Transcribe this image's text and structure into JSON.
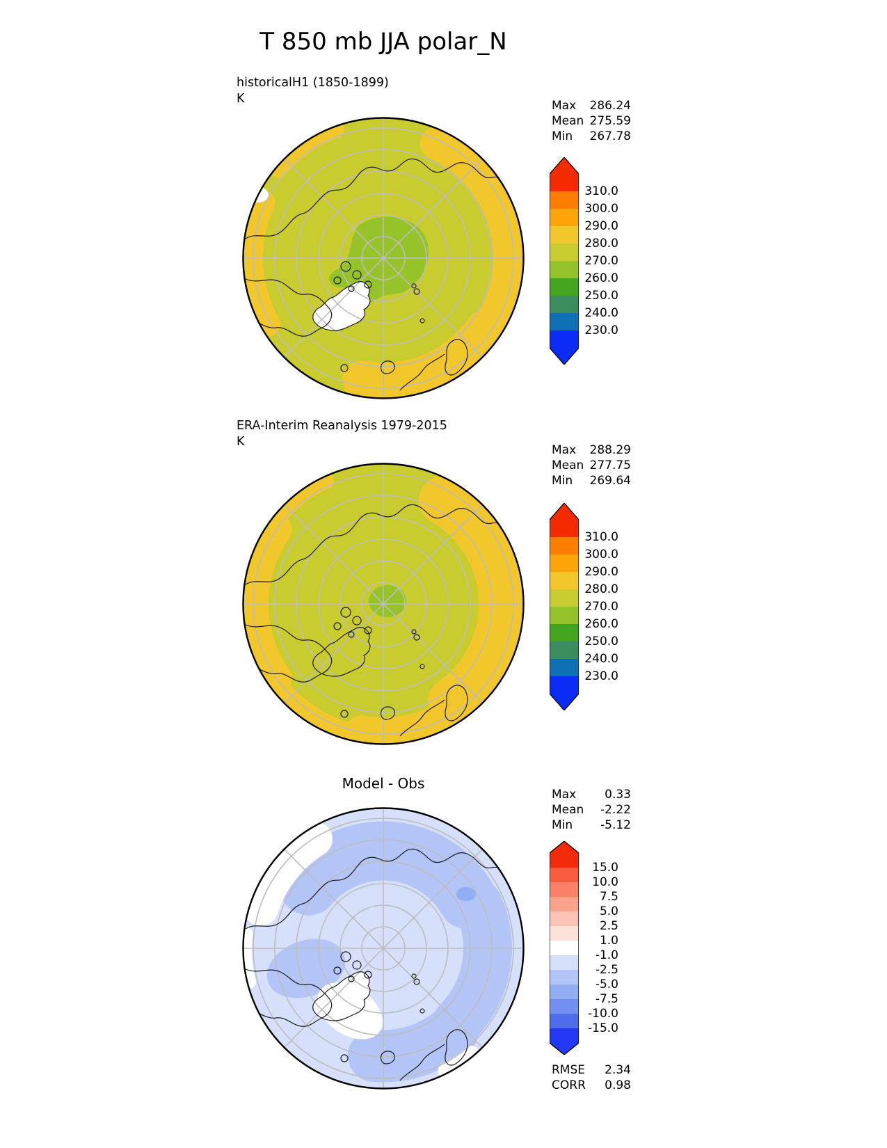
{
  "title": "T 850 mb JJA polar_N",
  "stats_labels": {
    "max": "Max",
    "mean": "Mean",
    "min": "Min",
    "rmse": "RMSE",
    "corr": "CORR"
  },
  "panels": [
    {
      "label": "historicalH1 (1850-1899)",
      "units": "K",
      "stats": {
        "max": "286.24",
        "mean": "275.59",
        "min": "267.78"
      },
      "colorbar": {
        "tick_labels": [
          "310.0",
          "300.0",
          "290.0",
          "280.0",
          "270.0",
          "260.0",
          "250.0",
          "240.0",
          "230.0"
        ],
        "colors": [
          "#f42b01",
          "#fb7e00",
          "#fca408",
          "#f2c72c",
          "#c9cc2e",
          "#96c32a",
          "#41a61d",
          "#398e60",
          "#0e71b6",
          "#0a2cf5"
        ]
      }
    },
    {
      "label": "ERA-Interim Reanalysis 1979-2015",
      "units": "K",
      "stats": {
        "max": "288.29",
        "mean": "277.75",
        "min": "269.64"
      },
      "colorbar": {
        "tick_labels": [
          "310.0",
          "300.0",
          "290.0",
          "280.0",
          "270.0",
          "260.0",
          "250.0",
          "240.0",
          "230.0"
        ],
        "colors": [
          "#f42b01",
          "#fb7e00",
          "#fca408",
          "#f2c72c",
          "#c9cc2e",
          "#96c32a",
          "#41a61d",
          "#398e60",
          "#0e71b6",
          "#0a2cf5"
        ]
      }
    },
    {
      "label": "Model - Obs",
      "stats": {
        "max": "0.33",
        "mean": "-2.22",
        "min": "-5.12",
        "rmse": "2.34",
        "corr": "0.98"
      },
      "colorbar": {
        "tick_labels": [
          "15.0",
          "10.0",
          "7.5",
          "5.0",
          "2.5",
          "1.0",
          "-1.0",
          "-2.5",
          "-5.0",
          "-7.5",
          "-10.0",
          "-15.0"
        ],
        "colors": [
          "#f42b0b",
          "#f95b3f",
          "#fa8168",
          "#fba28d",
          "#fcc3b5",
          "#fee2da",
          "#ffffff",
          "#d6e0fb",
          "#b3c4f7",
          "#93adf3",
          "#7390f0",
          "#4e6ceb",
          "#2338f5"
        ]
      }
    }
  ],
  "chart_data": [
    {
      "type": "heatmap",
      "subtype": "filled_contour_map",
      "projection": "north_polar_stereographic",
      "variable": "T 850 mb",
      "season": "JJA",
      "region": "polar_N",
      "title": "historicalH1 (1850-1899)",
      "units": "K",
      "stats": {
        "max": 286.24,
        "mean": 275.59,
        "min": 267.78
      },
      "contour_levels": [
        230,
        240,
        250,
        260,
        270,
        280,
        290,
        300,
        310
      ],
      "colorbar_extend": "both",
      "dominant_bands": {
        "interior": "270-280 K",
        "edges": "280-290 K",
        "pole_region": "260-270 K",
        "masked_white": "Greenland"
      }
    },
    {
      "type": "heatmap",
      "subtype": "filled_contour_map",
      "projection": "north_polar_stereographic",
      "variable": "T 850 mb",
      "season": "JJA",
      "region": "polar_N",
      "title": "ERA-Interim Reanalysis 1979-2015",
      "units": "K",
      "stats": {
        "max": 288.29,
        "mean": 277.75,
        "min": 269.64
      },
      "contour_levels": [
        230,
        240,
        250,
        260,
        270,
        280,
        290,
        300,
        310
      ],
      "colorbar_extend": "both",
      "dominant_bands": {
        "interior": "270-280 K",
        "edges": "280-290 K",
        "pole_region": "260-270 K"
      }
    },
    {
      "type": "heatmap",
      "subtype": "filled_contour_difference_map",
      "projection": "north_polar_stereographic",
      "variable": "T 850 mb",
      "season": "JJA",
      "region": "polar_N",
      "title": "Model - Obs",
      "units": "K",
      "stats": {
        "max": 0.33,
        "mean": -2.22,
        "min": -5.12,
        "rmse": 2.34,
        "corr": 0.98
      },
      "contour_levels": [
        -15,
        -10,
        -7.5,
        -5,
        -2.5,
        -1,
        1,
        2.5,
        5,
        7.5,
        10,
        15
      ],
      "colorbar_extend": "both",
      "dominant_bands": {
        "interior": "-2.5 to -1 K",
        "patches": "-5 to -2.5 K",
        "near_zero_white": "Greenland and northwest rim"
      }
    }
  ]
}
